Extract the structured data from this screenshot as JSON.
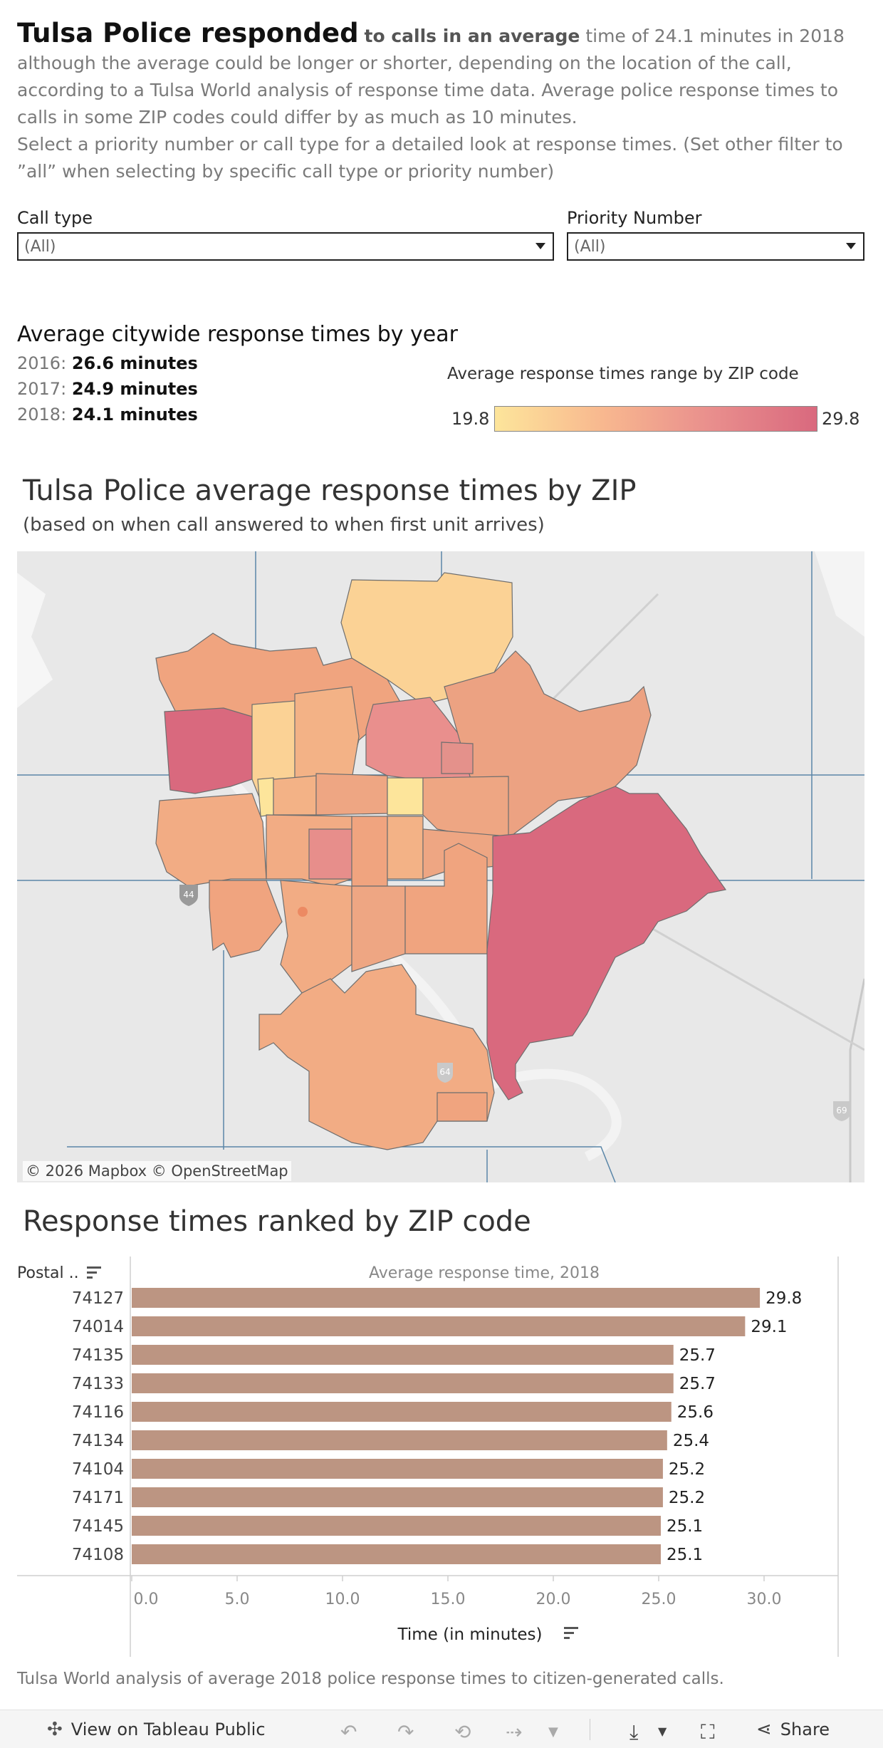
{
  "intro": {
    "lead_big": "Tulsa Police responded",
    "lead_mid": "to calls in an average",
    "body": "time of 24.1 minutes in 2018 although the average could be longer or shorter, depending on the location of the call, according to a Tulsa World analysis of response time data. Average police response times to calls in some ZIP codes could differ by as much as 10 minutes.",
    "instructions": "Select a priority number or call type for a detailed look at response times. (Set other filter to ”all” when selecting by specific call type or priority number)"
  },
  "filters": {
    "call_type": {
      "label": "Call type",
      "value": "(All)"
    },
    "priority": {
      "label": "Priority Number",
      "value": "(All)"
    }
  },
  "yearly": {
    "title": "Average citywide response times by year",
    "rows": [
      {
        "year": "2016:",
        "value": "26.6 minutes"
      },
      {
        "year": "2017:",
        "value": "24.9 minutes"
      },
      {
        "year": "2018:",
        "value": "24.1 minutes"
      }
    ]
  },
  "legend": {
    "title": "Average response times range by ZIP code",
    "min": "19.8",
    "max": "29.8",
    "colors": [
      "#fde59b",
      "#f8b88f",
      "#e98f8d",
      "#d9697e"
    ]
  },
  "map": {
    "title": "Tulsa Police average response times by ZIP",
    "subtitle": "(based on when call answered to when first unit arrives)",
    "attribution": "© 2026 Mapbox  © OpenStreetMap",
    "shields": [
      "44",
      "64",
      "69"
    ]
  },
  "ranking": {
    "title": "Response times ranked by ZIP code",
    "column_header": "Postal ..",
    "footnote": "Tulsa World analysis of average 2018 police response times to citizen-generated calls."
  },
  "chart_data": {
    "type": "bar",
    "orientation": "horizontal",
    "title": "Average response time, 2018",
    "xlabel": "Time (in minutes)",
    "ylabel": "Postal ..",
    "categories": [
      "74127",
      "74014",
      "74135",
      "74133",
      "74116",
      "74134",
      "74104",
      "74171",
      "74145",
      "74108"
    ],
    "values": [
      29.8,
      29.1,
      25.7,
      25.7,
      25.6,
      25.4,
      25.2,
      25.2,
      25.1,
      25.1
    ],
    "value_labels": [
      "29.8",
      "29.1",
      "25.7",
      "25.7",
      "25.6",
      "25.4",
      "25.2",
      "25.2",
      "25.1",
      "25.1"
    ],
    "xticks": [
      "0.0",
      "5.0",
      "10.0",
      "15.0",
      "20.0",
      "25.0",
      "30.0"
    ],
    "xlim": [
      0,
      33.5
    ],
    "bar_color": "#bc9582",
    "grid": false
  },
  "toolbar": {
    "view_label": "View on Tableau Public",
    "share_label": "Share"
  }
}
